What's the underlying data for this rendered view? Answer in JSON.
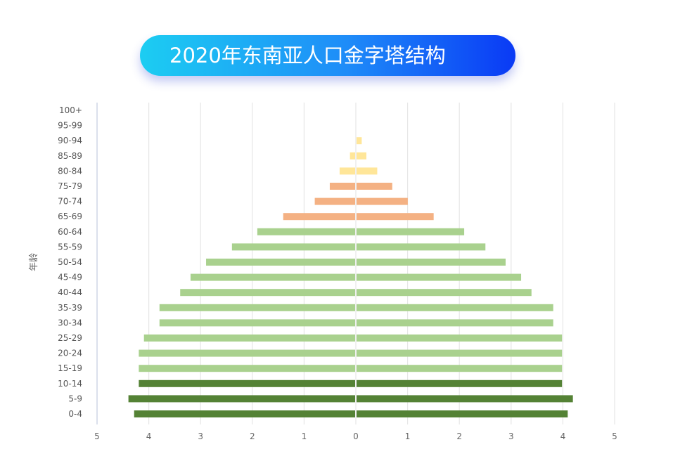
{
  "chart_data": {
    "type": "bar",
    "title": "2020年东南亚人口金字塔结构",
    "ylabel": "年龄",
    "xlabel": "",
    "xlim": [
      -5,
      5
    ],
    "xticks": [
      "5",
      "4",
      "3",
      "2",
      "1",
      "0",
      "1",
      "2",
      "3",
      "4",
      "5"
    ],
    "grid": true,
    "categories": [
      "0-4",
      "5-9",
      "10-14",
      "15-19",
      "20-24",
      "25-29",
      "30-34",
      "35-39",
      "40-44",
      "45-49",
      "50-54",
      "55-59",
      "60-64",
      "65-69",
      "70-74",
      "75-79",
      "80-84",
      "85-89",
      "90-94",
      "95-99",
      "100+"
    ],
    "left_values": [
      4.27,
      4.38,
      4.18,
      4.18,
      4.18,
      4.08,
      3.78,
      3.78,
      3.38,
      3.18,
      2.88,
      2.38,
      1.89,
      1.39,
      0.78,
      0.49,
      0.3,
      0.1,
      0,
      0,
      0
    ],
    "right_values": [
      4.08,
      4.18,
      3.97,
      3.97,
      3.97,
      3.97,
      3.8,
      3.8,
      3.38,
      3.18,
      2.88,
      2.49,
      2.08,
      1.49,
      0.99,
      0.69,
      0.4,
      0.19,
      0.1,
      0,
      0
    ],
    "colors": {
      "0-14": "#548235",
      "15-64": "#a9d18e",
      "65-79": "#f4b183",
      "80+": "#ffe699"
    }
  }
}
